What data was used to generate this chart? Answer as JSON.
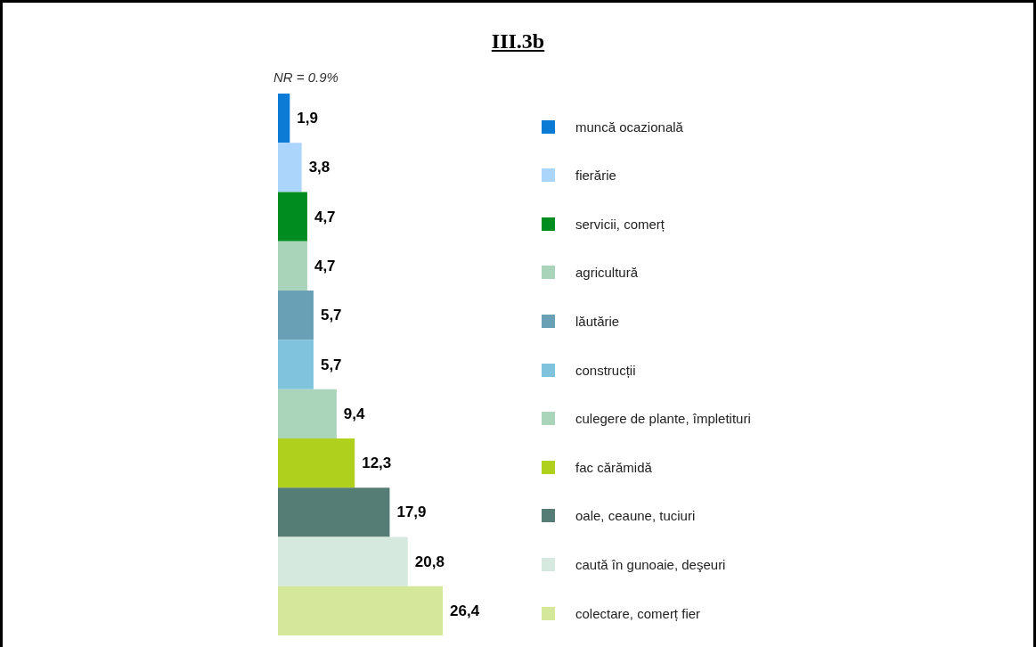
{
  "chart_data": {
    "type": "bar",
    "orientation": "horizontal",
    "title": "III.3b",
    "annotations": [
      "NR = 0.9%"
    ],
    "categories": [
      "muncă ocazională",
      "fierărie",
      "servicii, comerț",
      "agricultură",
      "lăutărie",
      "construcții",
      "culegere de plante, împletituri",
      "fac cărămidă",
      "oale, ceaune, tuciuri",
      "caută în gunoaie, deşeuri",
      "colectare, comerț fier"
    ],
    "values": [
      1.9,
      3.8,
      4.7,
      4.7,
      5.7,
      5.7,
      9.4,
      12.3,
      17.9,
      20.8,
      26.4
    ],
    "colors": [
      "#0b7bd6",
      "#acd5fb",
      "#008c1e",
      "#a9d4b9",
      "#69a0b5",
      "#7fc3dc",
      "#aad5bb",
      "#afd01d",
      "#557d75",
      "#d5e9de",
      "#d4e79a"
    ],
    "value_labels": [
      "1,9",
      "3,8",
      "4,7",
      "4,7",
      "5,7",
      "5,7",
      "9,4",
      "12,3",
      "17,9",
      "20,8",
      "26,4"
    ],
    "tick_labels": false
  }
}
